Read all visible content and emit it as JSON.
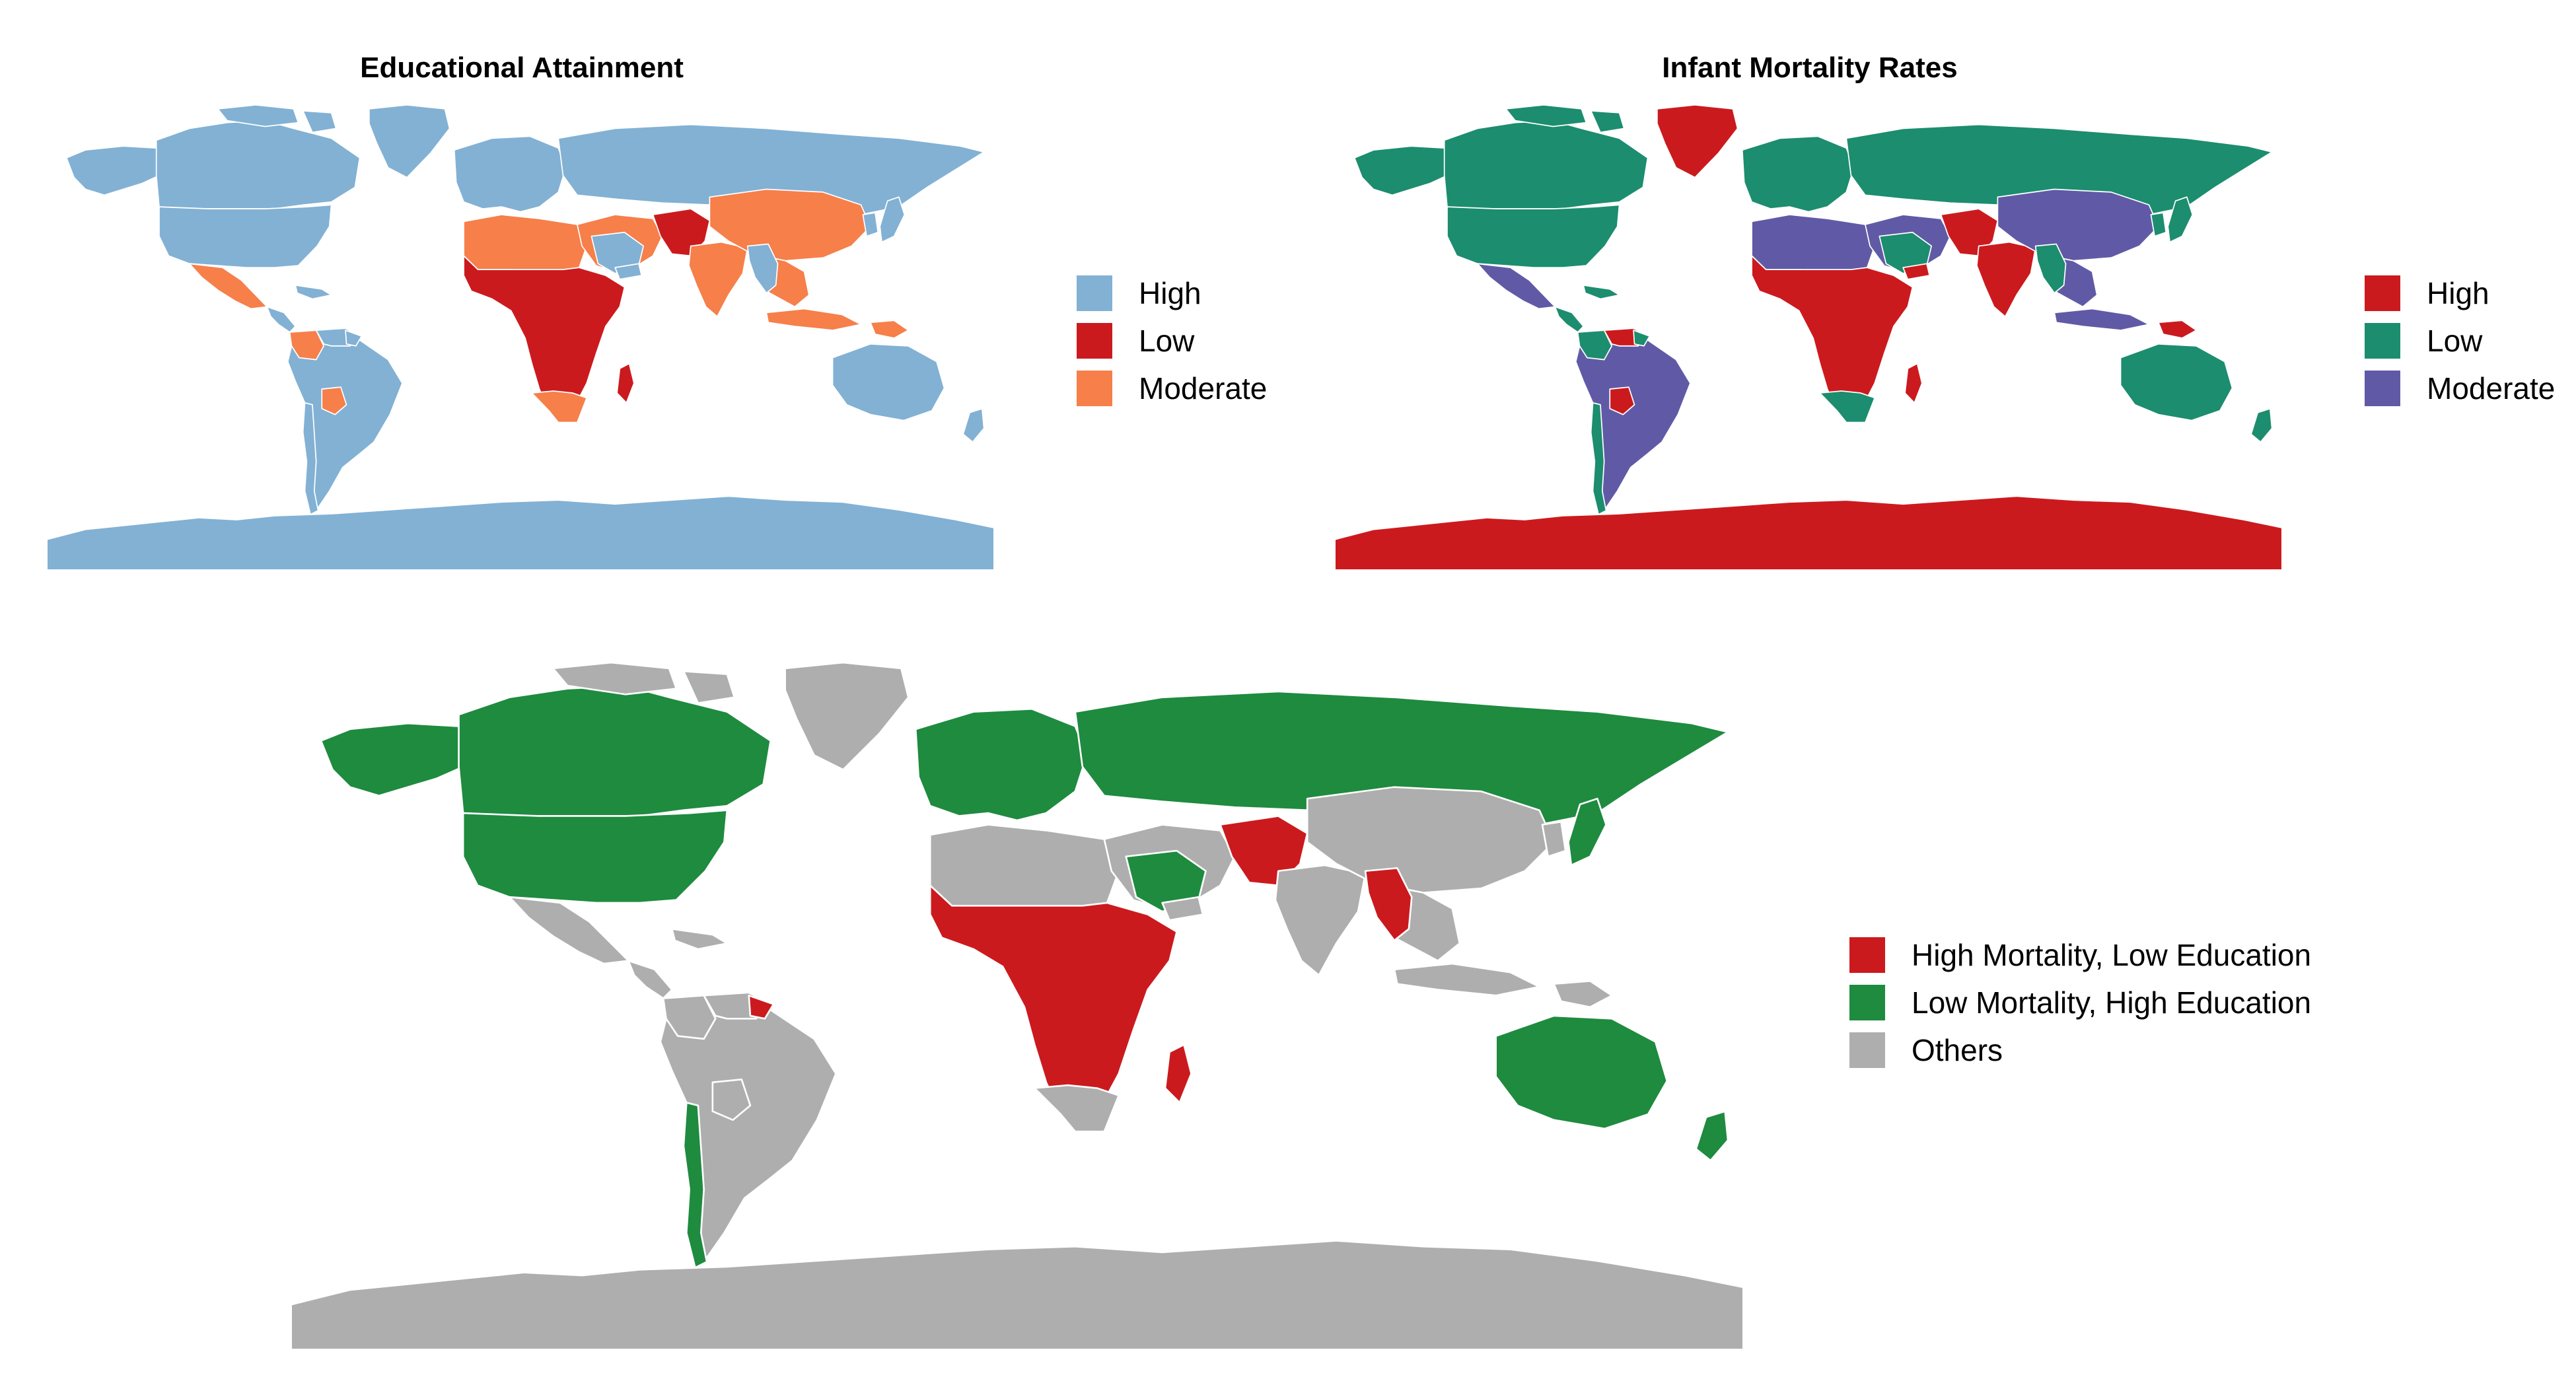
{
  "panels": [
    {
      "id": "education",
      "title": "Educational Attainment",
      "land_color": "#82b1d4",
      "antarctica_color": "#82b1d4",
      "legend": [
        {
          "label": "High",
          "color": "#82b1d4"
        },
        {
          "label": "Low",
          "color": "#cb1a1e"
        },
        {
          "label": "Moderate",
          "color": "#f67f4a"
        }
      ],
      "regions": [
        {
          "name": "mexico",
          "color": "#f67f4a"
        },
        {
          "name": "colombia",
          "color": "#f67f4a"
        },
        {
          "name": "bolivia",
          "color": "#f67f4a"
        },
        {
          "name": "north-africa",
          "color": "#f67f4a"
        },
        {
          "name": "southern-africa",
          "color": "#f67f4a"
        },
        {
          "name": "subsaharan-africa",
          "color": "#cb1a1e"
        },
        {
          "name": "madagascar",
          "color": "#cb1a1e"
        },
        {
          "name": "middle-east",
          "color": "#f67f4a"
        },
        {
          "name": "pakistan-afghanistan",
          "color": "#cb1a1e"
        },
        {
          "name": "india",
          "color": "#f67f4a"
        },
        {
          "name": "china",
          "color": "#f67f4a"
        },
        {
          "name": "southeast-asia",
          "color": "#f67f4a"
        },
        {
          "name": "indonesia",
          "color": "#f67f4a"
        },
        {
          "name": "papua-new-guinea",
          "color": "#f67f4a"
        }
      ]
    },
    {
      "id": "mortality",
      "title": "Infant Mortality Rates",
      "land_color": "#1c8d6e",
      "antarctica_color": "#cb1a1e",
      "legend": [
        {
          "label": "High",
          "color": "#cb1a1e"
        },
        {
          "label": "Low",
          "color": "#1c8d6e"
        },
        {
          "label": "Moderate",
          "color": "#605aa6"
        }
      ],
      "regions": [
        {
          "name": "greenland",
          "color": "#cb1a1e"
        },
        {
          "name": "mexico",
          "color": "#605aa6"
        },
        {
          "name": "south-america",
          "color": "#605aa6"
        },
        {
          "name": "venezuela-guyana",
          "color": "#cb1a1e"
        },
        {
          "name": "bolivia",
          "color": "#cb1a1e"
        },
        {
          "name": "north-africa",
          "color": "#605aa6"
        },
        {
          "name": "subsaharan-africa",
          "color": "#cb1a1e"
        },
        {
          "name": "madagascar",
          "color": "#cb1a1e"
        },
        {
          "name": "middle-east",
          "color": "#605aa6"
        },
        {
          "name": "yemen",
          "color": "#cb1a1e"
        },
        {
          "name": "pakistan-afghanistan",
          "color": "#cb1a1e"
        },
        {
          "name": "india",
          "color": "#cb1a1e"
        },
        {
          "name": "china",
          "color": "#605aa6"
        },
        {
          "name": "southeast-asia",
          "color": "#605aa6"
        },
        {
          "name": "indonesia",
          "color": "#605aa6"
        },
        {
          "name": "papua-new-guinea",
          "color": "#cb1a1e"
        }
      ]
    },
    {
      "id": "combined",
      "title": "",
      "land_color": "#aeaeae",
      "antarctica_color": "#aeaeae",
      "legend": [
        {
          "label": "High Mortality, Low Education",
          "color": "#cb1a1e"
        },
        {
          "label": "Low Mortality, High Education",
          "color": "#1e8b3f"
        },
        {
          "label": "Others",
          "color": "#aeaeae"
        }
      ],
      "regions": [
        {
          "name": "canada",
          "color": "#1e8b3f"
        },
        {
          "name": "alaska",
          "color": "#1e8b3f"
        },
        {
          "name": "usa",
          "color": "#1e8b3f"
        },
        {
          "name": "chile",
          "color": "#1e8b3f"
        },
        {
          "name": "guyana",
          "color": "#cb1a1e"
        },
        {
          "name": "europe",
          "color": "#1e8b3f"
        },
        {
          "name": "russia",
          "color": "#1e8b3f"
        },
        {
          "name": "japan",
          "color": "#1e8b3f"
        },
        {
          "name": "saudi-arabia",
          "color": "#1e8b3f"
        },
        {
          "name": "pakistan-afghanistan",
          "color": "#cb1a1e"
        },
        {
          "name": "myanmar-laos",
          "color": "#cb1a1e"
        },
        {
          "name": "subsaharan-africa",
          "color": "#cb1a1e"
        },
        {
          "name": "madagascar",
          "color": "#cb1a1e"
        },
        {
          "name": "australia",
          "color": "#1e8b3f"
        },
        {
          "name": "new-zealand",
          "color": "#1e8b3f"
        }
      ]
    }
  ]
}
